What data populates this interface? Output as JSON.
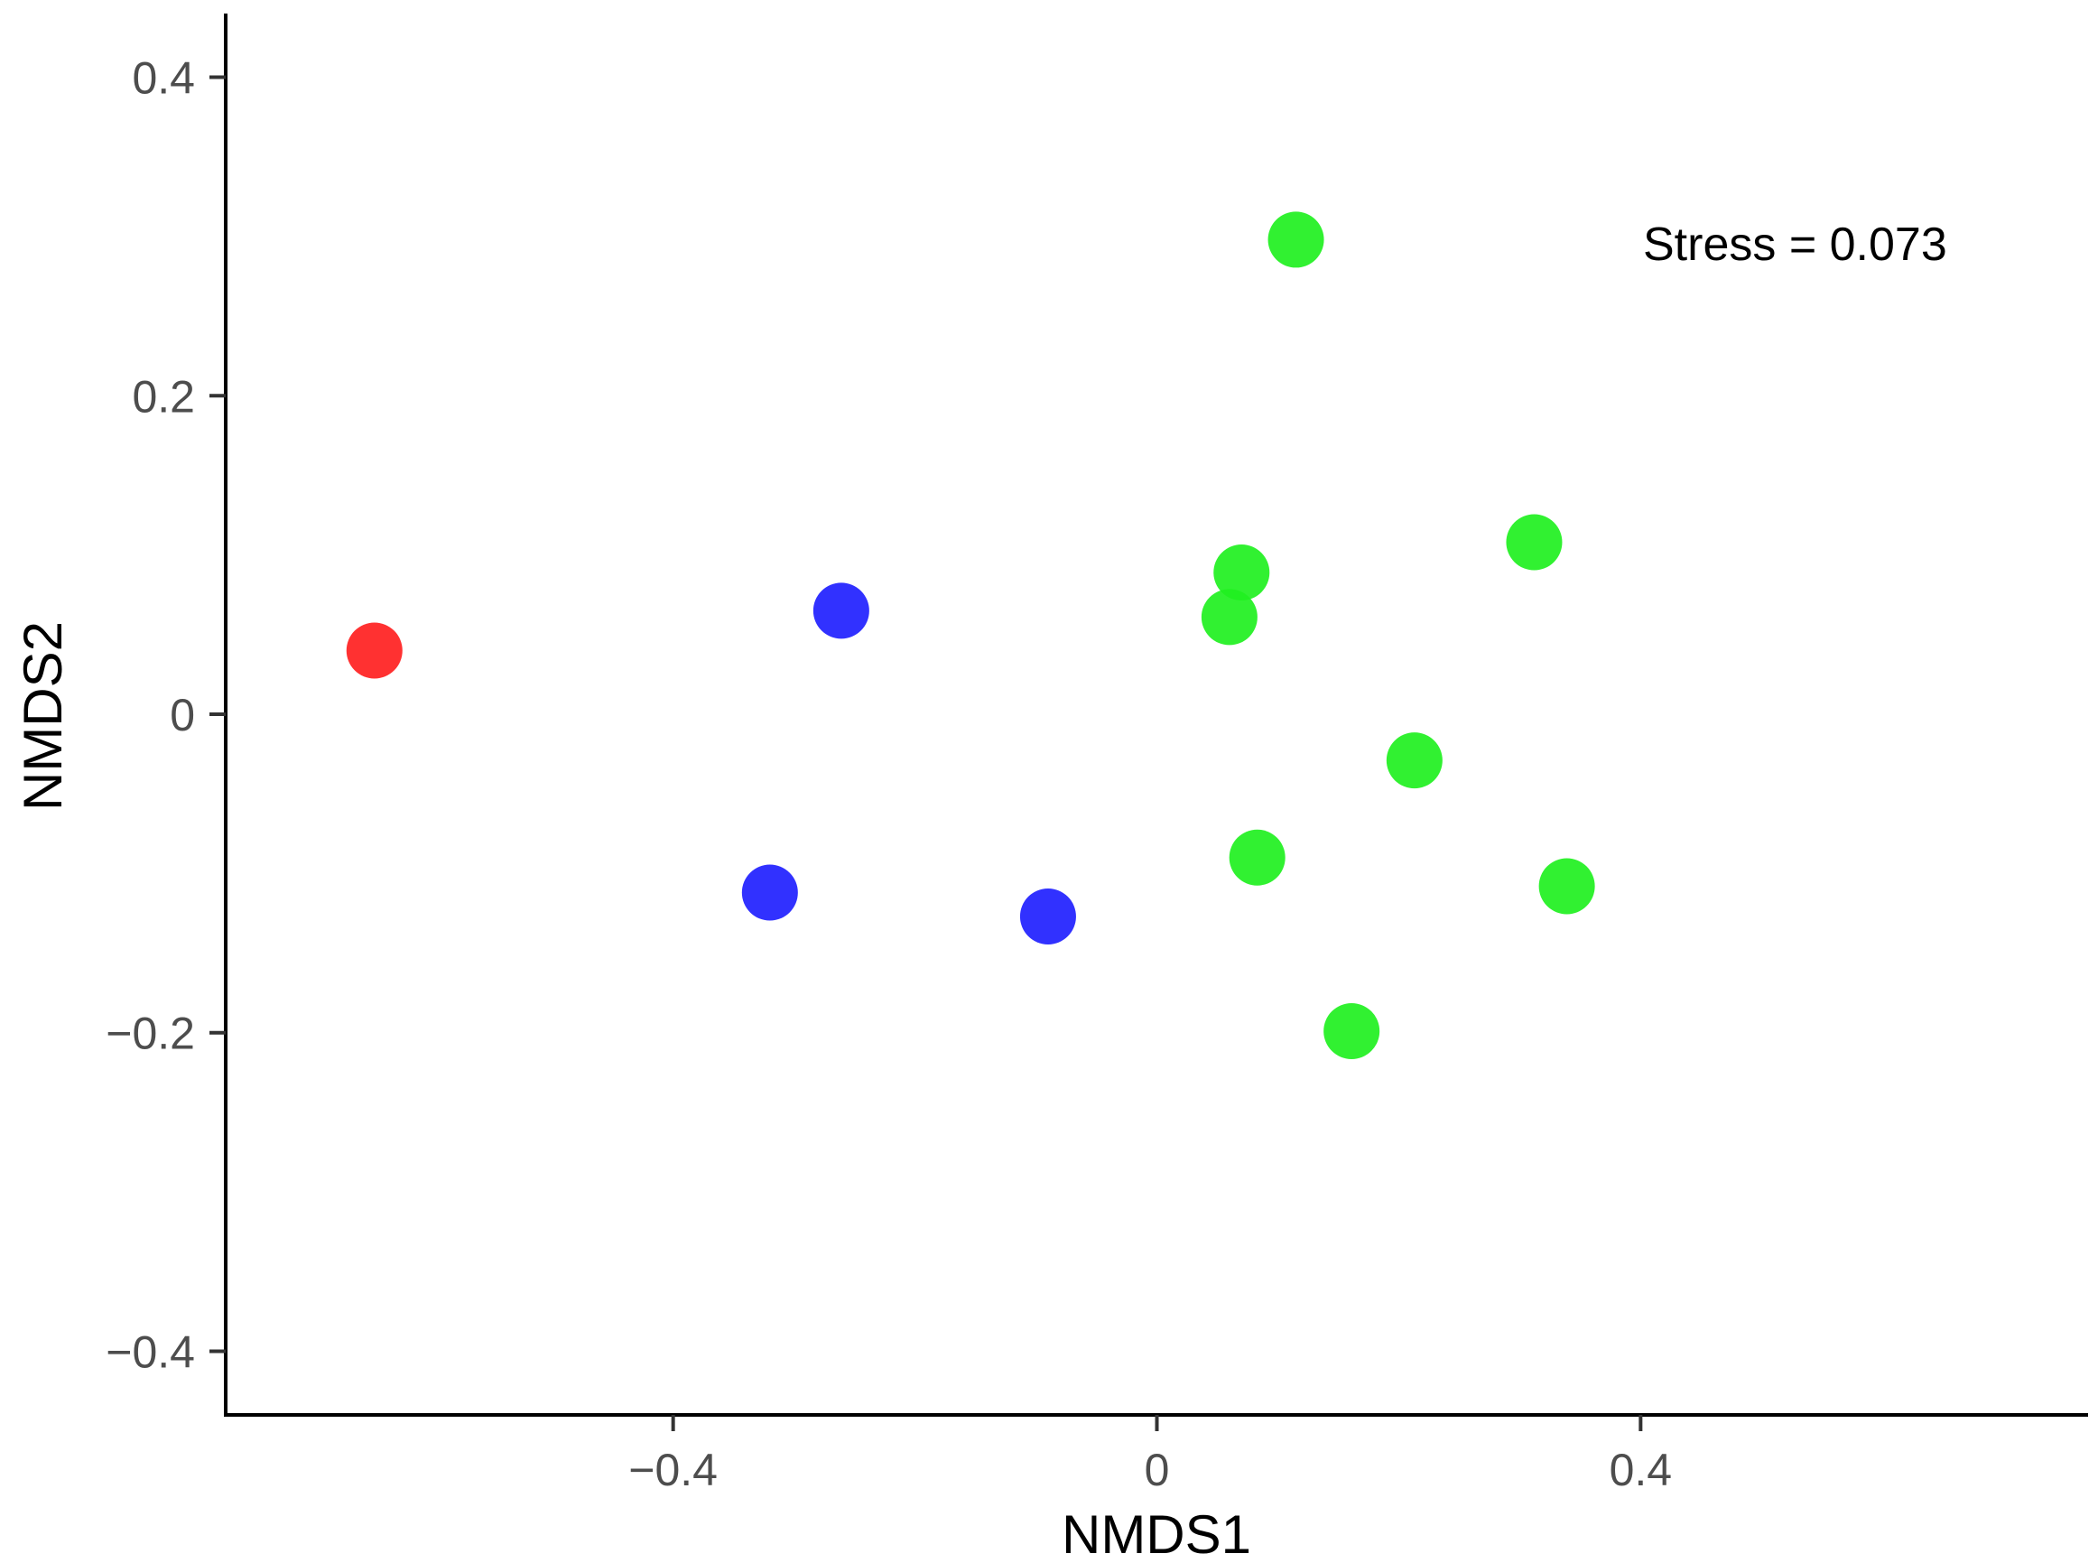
{
  "chart_data": {
    "type": "scatter",
    "title": "",
    "xlabel": "NMDS1",
    "ylabel": "NMDS2",
    "xlim": [
      -0.77,
      0.77
    ],
    "ylim": [
      -0.44,
      0.44
    ],
    "grid": false,
    "x_ticks": [
      -0.4,
      0,
      0.4
    ],
    "x_tick_labels": [
      "−0.4",
      "0",
      "0.4"
    ],
    "y_ticks": [
      -0.4,
      -0.2,
      0,
      0.2,
      0.4
    ],
    "y_tick_labels": [
      "−0.4",
      "−0.2",
      "0",
      "0.2",
      "0.4"
    ],
    "annotation": "Stress = 0.073",
    "series": [
      {
        "color": "#ff2020",
        "points": [
          {
            "x": -0.647,
            "y": 0.04
          }
        ]
      },
      {
        "color": "#2020ff",
        "points": [
          {
            "x": -0.261,
            "y": 0.065
          },
          {
            "x": -0.32,
            "y": -0.112
          },
          {
            "x": -0.09,
            "y": -0.127
          }
        ]
      },
      {
        "color": "#20f020",
        "points": [
          {
            "x": 0.115,
            "y": 0.298
          },
          {
            "x": 0.312,
            "y": 0.108
          },
          {
            "x": 0.07,
            "y": 0.089
          },
          {
            "x": 0.06,
            "y": 0.061
          },
          {
            "x": 0.213,
            "y": -0.029
          },
          {
            "x": 0.083,
            "y": -0.09
          },
          {
            "x": 0.339,
            "y": -0.108
          },
          {
            "x": 0.161,
            "y": -0.199
          }
        ]
      }
    ]
  }
}
